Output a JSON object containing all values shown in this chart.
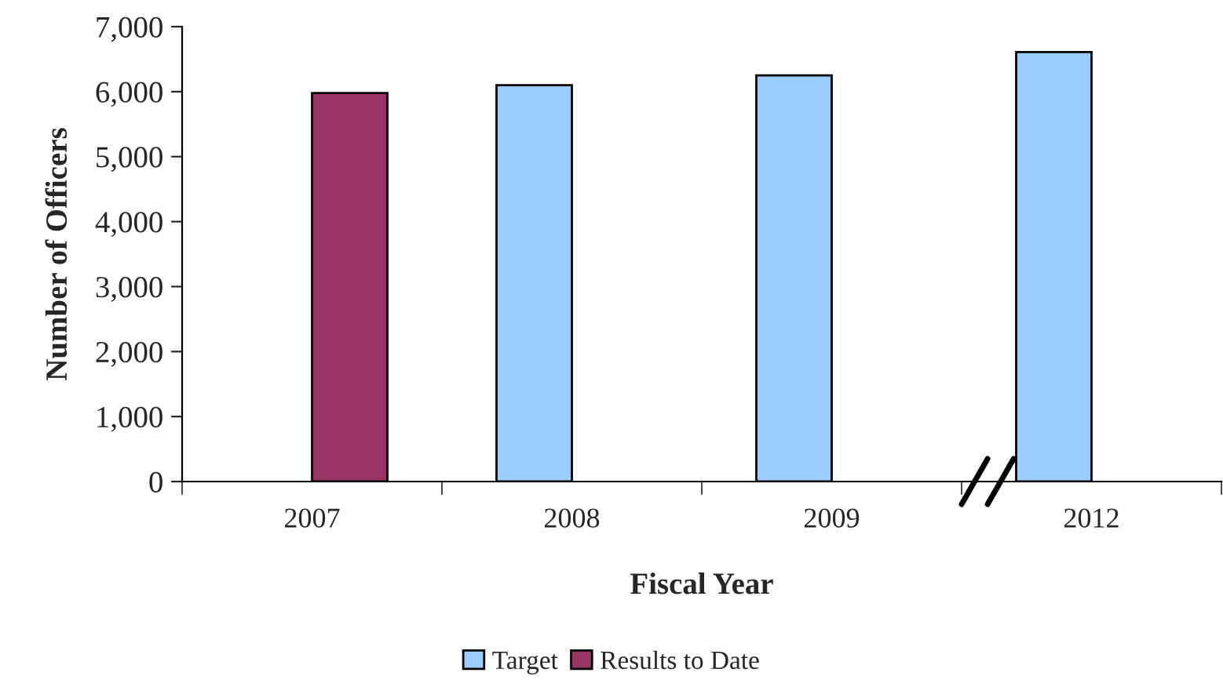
{
  "chart_data": {
    "type": "bar",
    "xlabel": "Fiscal Year",
    "ylabel": "Number of Officers",
    "categories": [
      "2007",
      "2008",
      "2009",
      "2012"
    ],
    "series": [
      {
        "name": "Target",
        "color": "#99ccff",
        "values": [
          null,
          6100,
          6250,
          6610
        ]
      },
      {
        "name": "Results to Date",
        "color": "#993366",
        "values": [
          5980,
          null,
          null,
          null
        ]
      }
    ],
    "ylim": [
      0,
      7000
    ],
    "yticks": [
      {
        "value": 0,
        "label": "0"
      },
      {
        "value": 1000,
        "label": "1,000"
      },
      {
        "value": 2000,
        "label": "2,000"
      },
      {
        "value": 3000,
        "label": "3,000"
      },
      {
        "value": 4000,
        "label": "4,000"
      },
      {
        "value": 5000,
        "label": "5,000"
      },
      {
        "value": 6000,
        "label": "6,000"
      },
      {
        "value": 7000,
        "label": "7,000"
      }
    ],
    "grid": false,
    "legend": "bottom"
  }
}
